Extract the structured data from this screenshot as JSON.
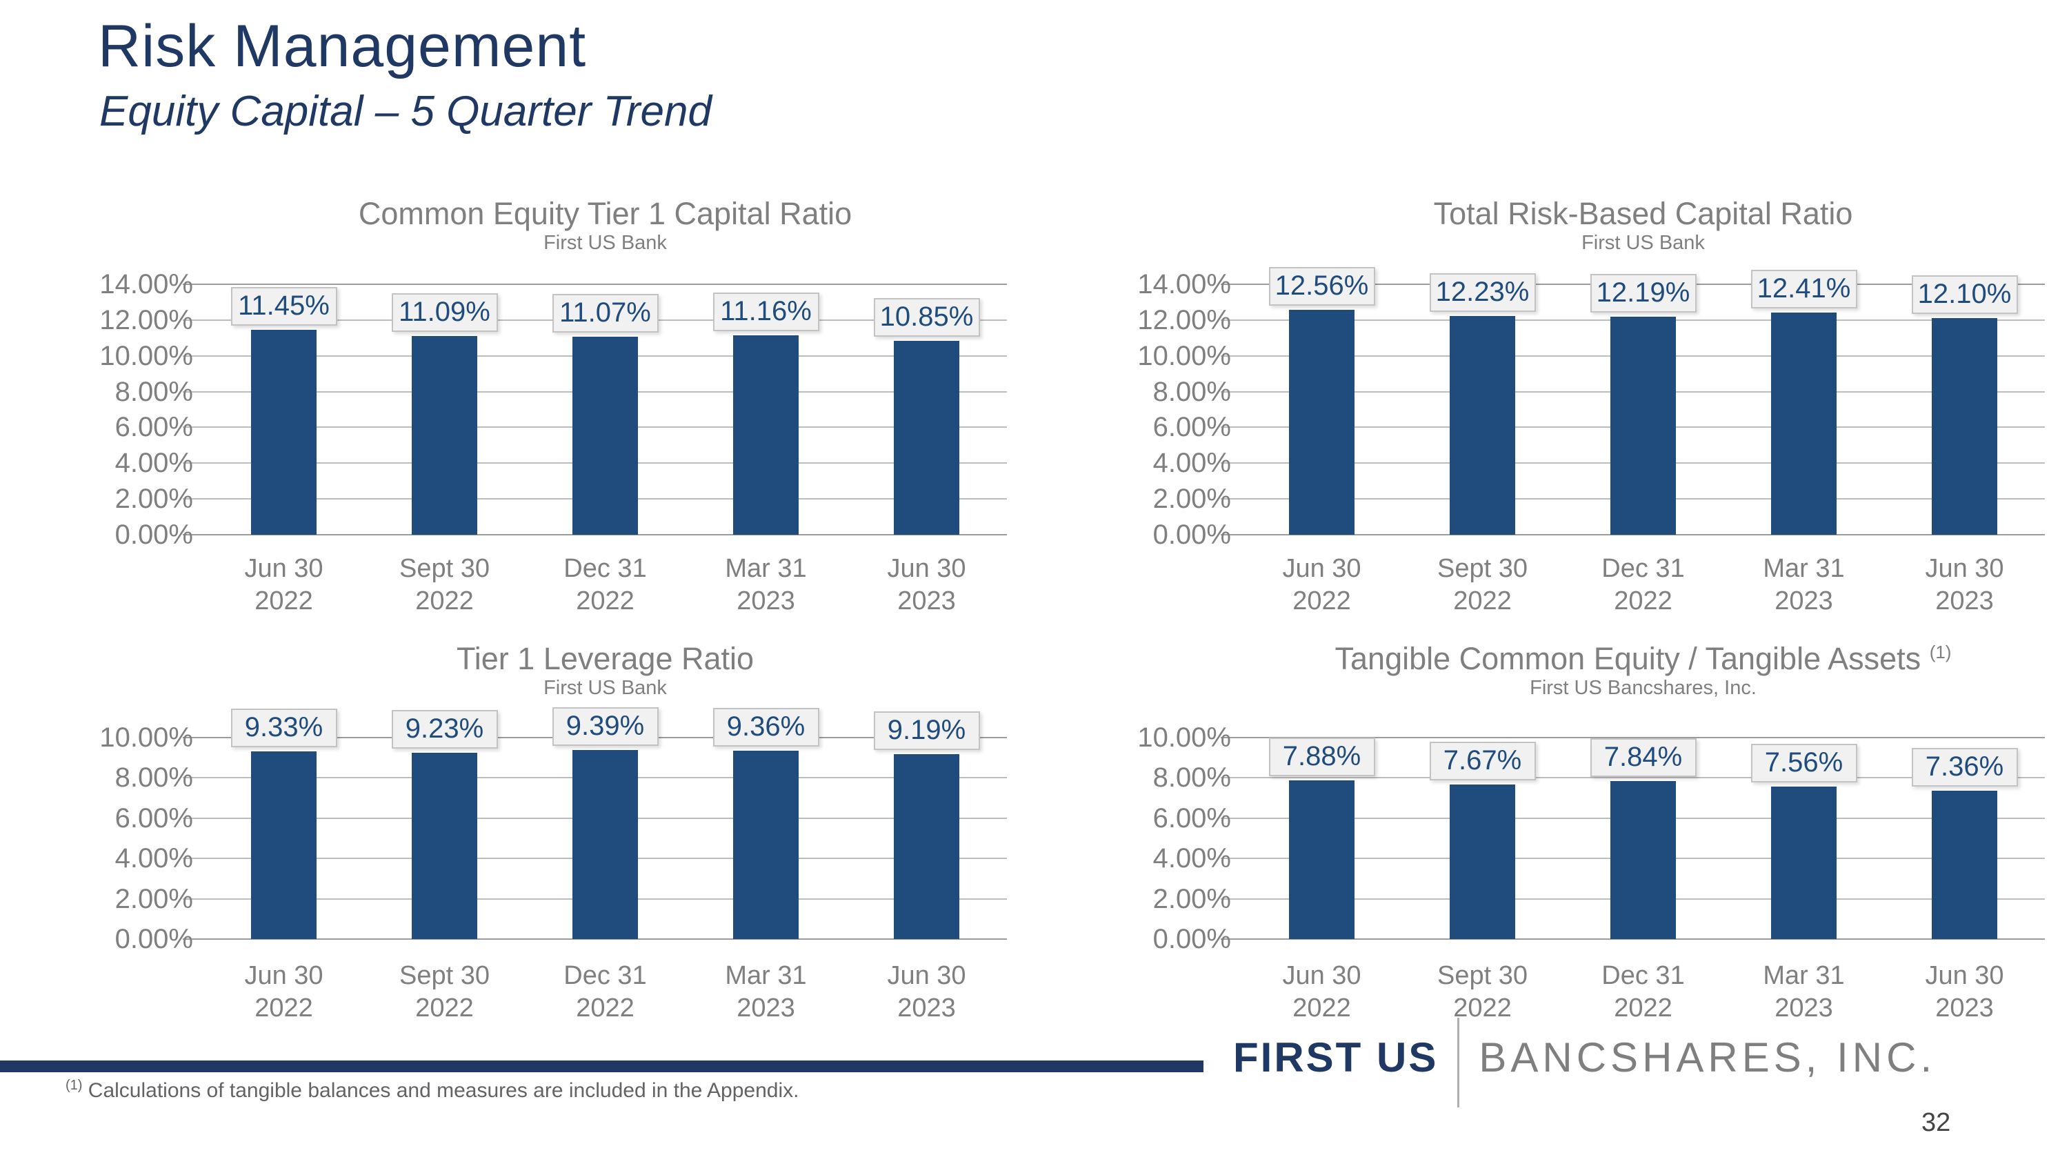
{
  "slide": {
    "title": "Risk Management",
    "subtitle": "Equity Capital – 5 Quarter Trend",
    "footnote_marker": "(1)",
    "footnote_text": " Calculations of tangible balances and measures are included in the Appendix.",
    "page_number": "32",
    "logo": {
      "primary": "FIRST US",
      "secondary": "BANCSHARES, INC."
    }
  },
  "colors": {
    "bar": "#1F4C7D",
    "title_navy": "#1F3864",
    "chart_text_gray": "#7F7F7F",
    "gridline": "#BDBDBD",
    "gridline_edge": "#9C9C9C",
    "value_box_bg": "#F1F1F1",
    "value_box_border": "#C3C3C3"
  },
  "chart_data": [
    {
      "type": "bar",
      "title": "Common Equity Tier 1 Capital Ratio",
      "title_superscript": "",
      "subtitle": "First US Bank",
      "categories": [
        "Jun 30\n2022",
        "Sept 30\n2022",
        "Dec 31\n2022",
        "Mar 31\n2023",
        "Jun 30\n2023"
      ],
      "values": [
        11.45,
        11.09,
        11.07,
        11.16,
        10.85
      ],
      "labels": [
        "11.45%",
        "11.09%",
        "11.07%",
        "11.16%",
        "10.85%"
      ],
      "ylim": [
        0,
        14
      ],
      "yticks": [
        "14.00%",
        "12.00%",
        "10.00%",
        "8.00%",
        "6.00%",
        "4.00%",
        "2.00%",
        "0.00%"
      ],
      "grid": true,
      "legend": "none"
    },
    {
      "type": "bar",
      "title": "Total Risk-Based Capital Ratio",
      "title_superscript": "",
      "subtitle": "First US Bank",
      "categories": [
        "Jun 30\n2022",
        "Sept 30\n2022",
        "Dec 31\n2022",
        "Mar 31\n2023",
        "Jun 30\n2023"
      ],
      "values": [
        12.56,
        12.23,
        12.19,
        12.41,
        12.1
      ],
      "labels": [
        "12.56%",
        "12.23%",
        "12.19%",
        "12.41%",
        "12.10%"
      ],
      "ylim": [
        0,
        14
      ],
      "yticks": [
        "14.00%",
        "12.00%",
        "10.00%",
        "8.00%",
        "6.00%",
        "4.00%",
        "2.00%",
        "0.00%"
      ],
      "grid": true,
      "legend": "none"
    },
    {
      "type": "bar",
      "title": "Tier 1 Leverage Ratio",
      "title_superscript": "",
      "subtitle": "First US Bank",
      "categories": [
        "Jun 30\n2022",
        "Sept 30\n2022",
        "Dec 31\n2022",
        "Mar 31\n2023",
        "Jun 30\n2023"
      ],
      "values": [
        9.33,
        9.23,
        9.39,
        9.36,
        9.19
      ],
      "labels": [
        "9.33%",
        "9.23%",
        "9.39%",
        "9.36%",
        "9.19%"
      ],
      "ylim": [
        0,
        10
      ],
      "yticks": [
        "10.00%",
        "8.00%",
        "6.00%",
        "4.00%",
        "2.00%",
        "0.00%"
      ],
      "grid": true,
      "legend": "none"
    },
    {
      "type": "bar",
      "title": "Tangible Common Equity / Tangible Assets ",
      "title_superscript": "(1)",
      "subtitle": "First US Bancshares, Inc.",
      "categories": [
        "Jun 30\n2022",
        "Sept 30\n2022",
        "Dec 31\n2022",
        "Mar 31\n2023",
        "Jun 30\n2023"
      ],
      "values": [
        7.88,
        7.67,
        7.84,
        7.56,
        7.36
      ],
      "labels": [
        "7.88%",
        "7.67%",
        "7.84%",
        "7.56%",
        "7.36%"
      ],
      "ylim": [
        0,
        10
      ],
      "yticks": [
        "10.00%",
        "8.00%",
        "6.00%",
        "4.00%",
        "2.00%",
        "0.00%"
      ],
      "grid": true,
      "legend": "none"
    }
  ]
}
